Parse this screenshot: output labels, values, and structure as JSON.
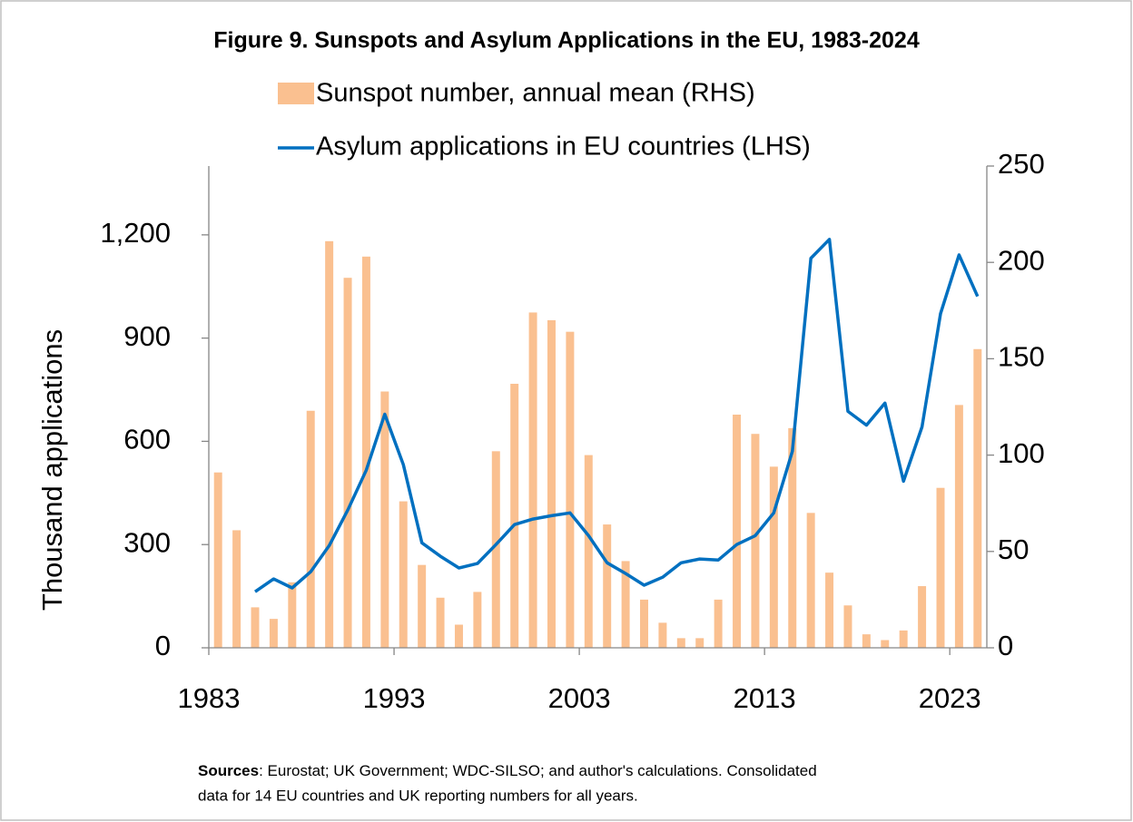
{
  "chart_data": {
    "type": "combo",
    "title": "Figure 9. Sunspots and Asylum Applications in the EU, 1983-2024",
    "ylabel": "Thousand applications",
    "x": [
      1983,
      1984,
      1985,
      1986,
      1987,
      1988,
      1989,
      1990,
      1991,
      1992,
      1993,
      1994,
      1995,
      1996,
      1997,
      1998,
      1999,
      2000,
      2001,
      2002,
      2003,
      2004,
      2005,
      2006,
      2007,
      2008,
      2009,
      2010,
      2011,
      2012,
      2013,
      2014,
      2015,
      2016,
      2017,
      2018,
      2019,
      2020,
      2021,
      2022,
      2023,
      2024
    ],
    "xlim": [
      1983,
      2025
    ],
    "xticks": [
      1983,
      1993,
      2003,
      2013,
      2023
    ],
    "ylim": [
      0,
      1400
    ],
    "yticks": [
      0,
      {
        "value": 300,
        "label": "300"
      },
      {
        "value": 600,
        "label": "600"
      },
      {
        "value": 900,
        "label": "900"
      },
      {
        "value": 1200,
        "label": "1,200"
      }
    ],
    "y2lim": [
      0,
      250
    ],
    "y2ticks": [
      0,
      50,
      100,
      150,
      200,
      250
    ],
    "series": [
      {
        "name": "Sunspot number, annual mean (RHS)",
        "type": "bar",
        "axis": "y2",
        "color": "#fac090",
        "values": [
          91,
          61,
          21,
          15,
          34,
          123,
          211,
          192,
          203,
          133,
          76,
          43,
          26,
          12,
          29,
          102,
          137,
          174,
          170,
          164,
          100,
          64,
          45,
          25,
          13,
          5,
          5,
          25,
          121,
          111,
          94,
          114,
          70,
          39,
          22,
          7,
          4,
          9,
          32,
          83,
          126,
          155
        ]
      },
      {
        "name": "Asylum applications in EU countries (LHS)",
        "type": "line",
        "axis": "y",
        "color": "#0070c0",
        "values": [
          null,
          null,
          163,
          200,
          174,
          221,
          297,
          400,
          516,
          679,
          532,
          305,
          266,
          232,
          245,
          300,
          358,
          374,
          384,
          392,
          326,
          247,
          216,
          182,
          205,
          247,
          258,
          255,
          300,
          326,
          392,
          571,
          1132,
          1187,
          687,
          647,
          711,
          484,
          642,
          971,
          1142,
          1021
        ]
      }
    ],
    "grid": false,
    "source_label": "Sources",
    "source_lines": [
      ": Eurostat; UK Government; WDC-SILSO; and author's calculations. Consolidated",
      "data for 14 EU countries and UK reporting numbers for all years."
    ]
  }
}
